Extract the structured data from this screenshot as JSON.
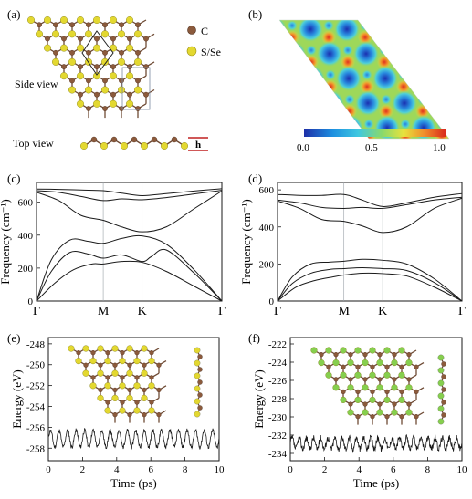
{
  "panels": {
    "a": {
      "label": "(a)",
      "legend": {
        "carbon": "C",
        "chalcogen": "S/Se"
      },
      "side_view": "Side view",
      "top_view": "Top view",
      "height_symbol": "h"
    },
    "b": {
      "label": "(b)",
      "colorbar_ticks": [
        "0.0",
        "0.5",
        "1.0"
      ]
    },
    "c": {
      "label": "(c)"
    },
    "d": {
      "label": "(d)"
    },
    "e": {
      "label": "(e)"
    },
    "f": {
      "label": "(f)"
    }
  },
  "colors": {
    "carbon": "#8b5a3c",
    "sulfur": "#e3d830",
    "selenium": "#86cf4e",
    "line": "#1a1a1a"
  },
  "chart_data": [
    {
      "panel": "c",
      "type": "line",
      "ylabel": "Frequency (cm⁻¹)",
      "x_ticks": [
        "Γ",
        "M",
        "K",
        "Γ"
      ],
      "x_tick_positions": [
        0,
        0.36,
        0.57,
        1
      ],
      "y_ticks": [
        0,
        200,
        400,
        600
      ],
      "ylim": [
        0,
        720
      ],
      "series": [
        {
          "x": [
            0,
            0.12,
            0.24,
            0.36,
            0.46,
            0.57,
            0.7,
            0.85,
            1
          ],
          "y": [
            680,
            678,
            674,
            670,
            655,
            640,
            652,
            668,
            682
          ]
        },
        {
          "x": [
            0,
            0.12,
            0.24,
            0.36,
            0.46,
            0.57,
            0.7,
            0.85,
            1
          ],
          "y": [
            670,
            660,
            635,
            610,
            620,
            615,
            628,
            650,
            672
          ]
        },
        {
          "x": [
            0,
            0.12,
            0.24,
            0.36,
            0.46,
            0.57,
            0.7,
            0.85,
            1
          ],
          "y": [
            660,
            610,
            520,
            490,
            450,
            420,
            450,
            560,
            668
          ]
        },
        {
          "x": [
            0,
            0.08,
            0.18,
            0.28,
            0.36,
            0.46,
            0.57,
            0.7,
            0.85,
            1
          ],
          "y": [
            0,
            250,
            370,
            362,
            350,
            380,
            395,
            345,
            190,
            0
          ]
        },
        {
          "x": [
            0,
            0.08,
            0.18,
            0.28,
            0.36,
            0.46,
            0.57,
            0.62,
            0.7,
            0.85,
            1
          ],
          "y": [
            0,
            180,
            295,
            285,
            260,
            280,
            240,
            270,
            310,
            170,
            0
          ]
        },
        {
          "x": [
            0,
            0.1,
            0.2,
            0.3,
            0.36,
            0.46,
            0.57,
            0.7,
            0.85,
            1
          ],
          "y": [
            0,
            110,
            190,
            225,
            225,
            240,
            235,
            180,
            90,
            0
          ]
        }
      ]
    },
    {
      "panel": "d",
      "type": "line",
      "ylabel": "Frequency (cm⁻¹)",
      "x_ticks": [
        "Γ",
        "M",
        "K",
        "Γ"
      ],
      "x_tick_positions": [
        0,
        0.36,
        0.57,
        1
      ],
      "y_ticks": [
        0,
        200,
        400,
        600
      ],
      "ylim": [
        0,
        640
      ],
      "series": [
        {
          "x": [
            0,
            0.12,
            0.24,
            0.36,
            0.46,
            0.57,
            0.7,
            0.85,
            1
          ],
          "y": [
            575,
            570,
            570,
            575,
            545,
            510,
            530,
            560,
            580
          ]
        },
        {
          "x": [
            0,
            0.12,
            0.24,
            0.36,
            0.46,
            0.57,
            0.7,
            0.85,
            1
          ],
          "y": [
            545,
            530,
            505,
            500,
            505,
            500,
            520,
            545,
            560
          ]
        },
        {
          "x": [
            0,
            0.12,
            0.24,
            0.36,
            0.46,
            0.57,
            0.7,
            0.85,
            1
          ],
          "y": [
            540,
            500,
            440,
            430,
            405,
            370,
            400,
            500,
            555
          ]
        },
        {
          "x": [
            0,
            0.08,
            0.18,
            0.28,
            0.36,
            0.46,
            0.57,
            0.7,
            0.85,
            1
          ],
          "y": [
            0,
            130,
            200,
            210,
            215,
            225,
            220,
            200,
            120,
            0
          ]
        },
        {
          "x": [
            0,
            0.08,
            0.18,
            0.28,
            0.36,
            0.46,
            0.57,
            0.7,
            0.85,
            1
          ],
          "y": [
            0,
            95,
            150,
            170,
            175,
            180,
            175,
            165,
            100,
            0
          ]
        },
        {
          "x": [
            0,
            0.1,
            0.2,
            0.3,
            0.36,
            0.46,
            0.57,
            0.7,
            0.85,
            1
          ],
          "y": [
            0,
            75,
            110,
            130,
            140,
            150,
            148,
            135,
            75,
            0
          ]
        }
      ]
    },
    {
      "panel": "e",
      "type": "line",
      "xlabel": "Time (ps)",
      "ylabel": "Energy (eV)",
      "x_ticks": [
        0,
        2,
        4,
        6,
        8,
        10
      ],
      "xlim": [
        0,
        10
      ],
      "y_ticks": [
        -258,
        -256,
        -254,
        -252,
        -250,
        -248
      ],
      "ylim": [
        -259.2,
        -247.4
      ],
      "oscillation": {
        "mean": -257.1,
        "amplitude": 0.8,
        "periods": 20,
        "noise": 0.2
      }
    },
    {
      "panel": "f",
      "type": "line",
      "xlabel": "Time (ps)",
      "ylabel": "Energy (eV)",
      "x_ticks": [
        0,
        2,
        4,
        6,
        8,
        10
      ],
      "xlim": [
        0,
        10
      ],
      "y_ticks": [
        -234,
        -232,
        -230,
        -228,
        -226,
        -224,
        -222
      ],
      "ylim": [
        -234.8,
        -221.3
      ],
      "oscillation": {
        "mean": -232.9,
        "amplitude": 0.6,
        "periods": 24,
        "noise": 0.35
      }
    }
  ]
}
